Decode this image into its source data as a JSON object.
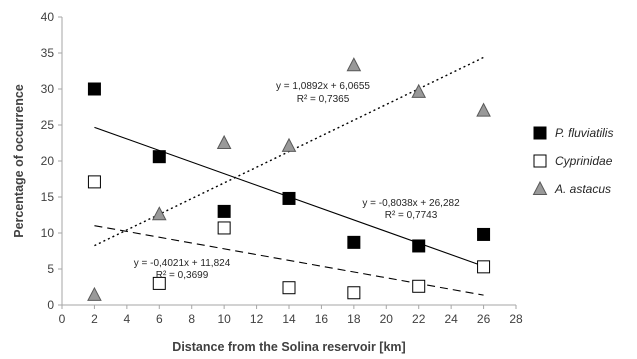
{
  "chart_data": {
    "type": "scatter",
    "xlabel": "Distance from the Solina reservoir [km]",
    "ylabel": "Percentage of occurrence",
    "xlim": [
      0,
      28
    ],
    "ylim": [
      0,
      40
    ],
    "xticks": [
      "0",
      "2",
      "4",
      "6",
      "8",
      "10",
      "12",
      "14",
      "16",
      "18",
      "20",
      "22",
      "24",
      "26",
      "28"
    ],
    "yticks": [
      "0",
      "5",
      "10",
      "15",
      "20",
      "25",
      "30",
      "35",
      "40"
    ],
    "grid": false,
    "legend": "right",
    "series": [
      {
        "name": "P. fluviatilis",
        "marker": "square-filled",
        "color": "#000000",
        "points": [
          [
            2,
            30.0
          ],
          [
            6,
            20.6
          ],
          [
            10,
            13.0
          ],
          [
            14,
            14.8
          ],
          [
            18,
            8.7
          ],
          [
            22,
            8.2
          ],
          [
            26,
            9.8
          ]
        ],
        "trend": {
          "style": "solid",
          "slope": -0.8038,
          "intercept": 26.282,
          "equation": "y = -0,8038x + 26,282",
          "r2": "R² = 0,7743"
        }
      },
      {
        "name": "Cyprinidae",
        "marker": "square-open",
        "color": "#000000",
        "points": [
          [
            2,
            17.1
          ],
          [
            6,
            3.0
          ],
          [
            10,
            10.7
          ],
          [
            14,
            2.4
          ],
          [
            18,
            1.7
          ],
          [
            22,
            2.6
          ],
          [
            26,
            5.3
          ]
        ],
        "trend": {
          "style": "dashed",
          "slope": -0.4021,
          "intercept": 11.824,
          "equation": "y = -0,4021x + 11,824",
          "r2": "R² = 0,3699"
        }
      },
      {
        "name": "A. astacus",
        "marker": "triangle",
        "color": "#999999",
        "points": [
          [
            2,
            1.4
          ],
          [
            6,
            12.6
          ],
          [
            10,
            22.5
          ],
          [
            14,
            22.1
          ],
          [
            18,
            33.3
          ],
          [
            22,
            29.6
          ],
          [
            26,
            27.0
          ]
        ],
        "trend": {
          "style": "dotted",
          "slope": 1.0892,
          "intercept": 6.0655,
          "equation": "y = 1,0892x + 6,0655",
          "r2": "R² = 0,7365"
        }
      }
    ]
  }
}
